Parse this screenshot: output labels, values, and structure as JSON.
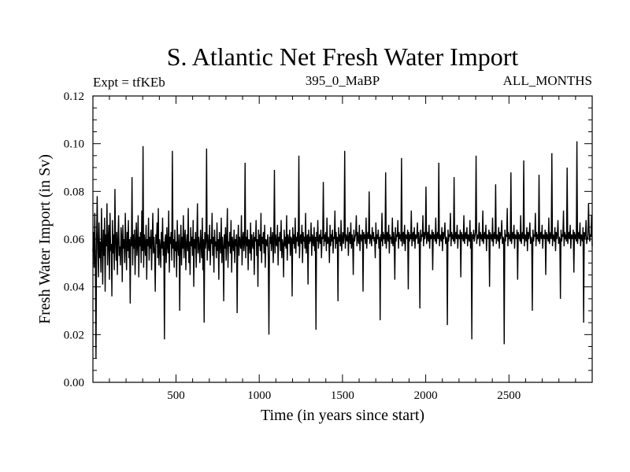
{
  "chart_data": {
    "type": "line",
    "title": "S. Atlantic Net Fresh Water Import",
    "subtitle_left": "Expt = tfKEb",
    "subtitle_center": "395_0_MaBP",
    "subtitle_right": "ALL_MONTHS",
    "xlabel": "Time (in years since start)",
    "ylabel": "Fresh Water Import (in Sv)",
    "xlim": [
      1,
      3000
    ],
    "ylim": [
      0.0,
      0.12
    ],
    "xticks": [
      500,
      1000,
      1500,
      2000,
      2500
    ],
    "xtick_labels": [
      "500",
      "1000",
      "1500",
      "2000",
      "2500"
    ],
    "yticks": [
      0.0,
      0.02,
      0.04,
      0.06,
      0.08,
      0.1,
      0.12
    ],
    "ytick_labels": [
      "0.00",
      "0.02",
      "0.04",
      "0.06",
      "0.08",
      "0.10",
      "0.12"
    ],
    "grid": false,
    "line_color": "#000000",
    "series": [
      {
        "values": [
          0.055,
          0.063,
          0.048,
          0.071,
          0.052,
          0.01,
          0.061,
          0.078,
          0.056,
          0.044,
          0.067,
          0.052,
          0.059,
          0.046,
          0.073,
          0.058,
          0.041,
          0.064,
          0.053,
          0.069,
          0.038,
          0.062,
          0.057,
          0.075,
          0.049,
          0.06,
          0.066,
          0.043,
          0.071,
          0.055,
          0.058,
          0.036,
          0.068,
          0.054,
          0.062,
          0.047,
          0.081,
          0.059,
          0.051,
          0.063,
          0.045,
          0.06,
          0.07,
          0.053,
          0.057,
          0.049,
          0.065,
          0.061,
          0.042,
          0.066,
          0.056,
          0.06,
          0.05,
          0.071,
          0.058,
          0.047,
          0.063,
          0.055,
          0.068,
          0.052,
          0.06,
          0.033,
          0.061,
          0.057,
          0.086,
          0.049,
          0.062,
          0.056,
          0.064,
          0.045,
          0.059,
          0.067,
          0.053,
          0.058,
          0.07,
          0.044,
          0.061,
          0.057,
          0.063,
          0.05,
          0.072,
          0.055,
          0.099,
          0.048,
          0.062,
          0.058,
          0.053,
          0.066,
          0.043,
          0.06,
          0.057,
          0.069,
          0.051,
          0.061,
          0.056,
          0.064,
          0.047,
          0.059,
          0.071,
          0.054,
          0.061,
          0.055,
          0.038,
          0.062,
          0.058,
          0.067,
          0.052,
          0.073,
          0.049,
          0.06,
          0.057,
          0.048,
          0.063,
          0.056,
          0.069,
          0.053,
          0.059,
          0.018,
          0.06,
          0.062,
          0.05,
          0.065,
          0.057,
          0.054,
          0.072,
          0.046,
          0.061,
          0.058,
          0.063,
          0.051,
          0.097,
          0.056,
          0.06,
          0.048,
          0.064,
          0.055,
          0.059,
          0.044,
          0.068,
          0.057,
          0.053,
          0.062,
          0.03,
          0.058,
          0.066,
          0.049,
          0.061,
          0.056,
          0.07,
          0.052,
          0.06,
          0.064,
          0.047,
          0.058,
          0.062,
          0.055,
          0.073,
          0.05,
          0.059,
          0.045,
          0.065,
          0.057,
          0.061,
          0.053,
          0.068,
          0.04,
          0.06,
          0.056,
          0.063,
          0.048,
          0.059,
          0.075,
          0.054,
          0.061,
          0.057,
          0.05,
          0.064,
          0.058,
          0.052,
          0.069,
          0.047,
          0.06,
          0.025,
          0.063,
          0.056,
          0.059,
          0.098,
          0.051,
          0.062,
          0.057,
          0.055,
          0.066,
          0.049,
          0.06,
          0.058,
          0.071,
          0.053,
          0.061,
          0.046,
          0.064,
          0.057,
          0.059,
          0.052,
          0.067,
          0.055,
          0.06,
          0.043,
          0.063,
          0.058,
          0.054,
          0.069,
          0.05,
          0.061,
          0.057,
          0.034,
          0.062,
          0.056,
          0.065,
          0.051,
          0.06,
          0.073,
          0.048,
          0.059,
          0.057,
          0.063,
          0.054,
          0.068,
          0.046,
          0.061,
          0.058,
          0.055,
          0.064,
          0.05,
          0.06,
          0.057,
          0.062,
          0.029,
          0.059,
          0.066,
          0.053,
          0.061,
          0.058,
          0.056,
          0.07,
          0.049,
          0.06,
          0.063,
          0.055,
          0.058,
          0.092,
          0.052,
          0.061,
          0.057,
          0.064,
          0.047,
          0.06,
          0.059,
          0.054,
          0.067,
          0.051,
          0.062,
          0.058,
          0.056,
          0.063,
          0.045,
          0.061,
          0.059,
          0.068,
          0.053,
          0.06,
          0.04,
          0.064,
          0.057,
          0.062,
          0.055,
          0.071,
          0.05,
          0.061,
          0.058,
          0.063,
          0.054,
          0.066,
          0.048,
          0.06,
          0.059,
          0.057,
          0.062,
          0.052,
          0.02,
          0.061,
          0.058,
          0.065,
          0.055,
          0.06,
          0.063,
          0.05,
          0.059,
          0.089,
          0.054,
          0.062,
          0.058,
          0.057,
          0.066,
          0.049,
          0.061,
          0.059,
          0.063,
          0.055,
          0.068,
          0.052,
          0.06,
          0.058,
          0.044,
          0.064,
          0.057,
          0.061,
          0.056,
          0.07,
          0.051,
          0.062,
          0.059,
          0.058,
          0.064,
          0.053,
          0.061,
          0.06,
          0.036,
          0.065,
          0.058,
          0.062,
          0.056,
          0.069,
          0.054,
          0.061,
          0.059,
          0.063,
          0.057,
          0.095,
          0.052,
          0.06,
          0.062,
          0.058,
          0.066,
          0.05,
          0.063,
          0.059,
          0.061,
          0.056,
          0.071,
          0.054,
          0.06,
          0.062,
          0.041,
          0.064,
          0.058,
          0.061,
          0.059,
          0.067,
          0.053,
          0.062,
          0.06,
          0.057,
          0.065,
          0.055,
          0.061,
          0.022,
          0.063,
          0.059,
          0.068,
          0.056,
          0.06,
          0.062,
          0.058,
          0.064,
          0.052,
          0.061,
          0.06,
          0.084,
          0.057,
          0.062,
          0.059,
          0.063,
          0.055,
          0.069,
          0.058,
          0.061,
          0.06,
          0.05,
          0.066,
          0.057,
          0.062,
          0.059,
          0.064,
          0.054,
          0.061,
          0.06,
          0.072,
          0.056,
          0.063,
          0.058,
          0.061,
          0.034,
          0.065,
          0.059,
          0.062,
          0.057,
          0.068,
          0.055,
          0.06,
          0.063,
          0.058,
          0.061,
          0.097,
          0.056,
          0.062,
          0.06,
          0.059,
          0.065,
          0.053,
          0.061,
          0.063,
          0.058,
          0.067,
          0.056,
          0.062,
          0.06,
          0.045,
          0.064,
          0.059,
          0.061,
          0.062,
          0.07,
          0.057,
          0.063,
          0.06,
          0.058,
          0.066,
          0.055,
          0.062,
          0.061,
          0.059,
          0.064,
          0.038,
          0.063,
          0.06,
          0.062,
          0.058,
          0.069,
          0.056,
          0.061,
          0.063,
          0.06,
          0.08,
          0.058,
          0.062,
          0.061,
          0.057,
          0.065,
          0.06,
          0.063,
          0.059,
          0.061,
          0.052,
          0.067,
          0.058,
          0.062,
          0.06,
          0.064,
          0.056,
          0.061,
          0.026,
          0.062,
          0.059,
          0.071,
          0.057,
          0.063,
          0.06,
          0.062,
          0.058,
          0.088,
          0.056,
          0.061,
          0.063,
          0.059,
          0.066,
          0.054,
          0.062,
          0.06,
          0.061,
          0.058,
          0.069,
          0.057,
          0.063,
          0.06,
          0.043,
          0.065,
          0.059,
          0.062,
          0.061,
          0.068,
          0.056,
          0.063,
          0.06,
          0.062,
          0.059,
          0.094,
          0.057,
          0.061,
          0.063,
          0.058,
          0.066,
          0.055,
          0.062,
          0.061,
          0.06,
          0.064,
          0.039,
          0.063,
          0.059,
          0.062,
          0.06,
          0.072,
          0.057,
          0.061,
          0.063,
          0.059,
          0.065,
          0.056,
          0.062,
          0.06,
          0.061,
          0.067,
          0.058,
          0.063,
          0.06,
          0.031,
          0.064,
          0.059,
          0.062,
          0.061,
          0.07,
          0.057,
          0.063,
          0.06,
          0.062,
          0.082,
          0.058,
          0.061,
          0.063,
          0.059,
          0.066,
          0.056,
          0.062,
          0.06,
          0.061,
          0.064,
          0.047,
          0.063,
          0.06,
          0.062,
          0.059,
          0.069,
          0.058,
          0.061,
          0.063,
          0.06,
          0.092,
          0.057,
          0.062,
          0.061,
          0.059,
          0.065,
          0.055,
          0.063,
          0.06,
          0.062,
          0.067,
          0.058,
          0.061,
          0.06,
          0.024,
          0.064,
          0.059,
          0.062,
          0.061,
          0.071,
          0.057,
          0.063,
          0.06,
          0.062,
          0.059,
          0.086,
          0.058,
          0.061,
          0.063,
          0.06,
          0.066,
          0.056,
          0.062,
          0.061,
          0.06,
          0.064,
          0.044,
          0.063,
          0.06,
          0.062,
          0.059,
          0.07,
          0.058,
          0.061,
          0.063,
          0.06,
          0.065,
          0.057,
          0.062,
          0.061,
          0.059,
          0.068,
          0.056,
          0.063,
          0.018,
          0.062,
          0.06,
          0.064,
          0.059,
          0.061,
          0.063,
          0.095,
          0.058,
          0.062,
          0.06,
          0.061,
          0.067,
          0.057,
          0.063,
          0.06,
          0.062,
          0.059,
          0.072,
          0.058,
          0.061,
          0.063,
          0.06,
          0.066,
          0.055,
          0.062,
          0.061,
          0.06,
          0.064,
          0.04,
          0.063,
          0.06,
          0.062,
          0.059,
          0.069,
          0.057,
          0.061,
          0.063,
          0.06,
          0.083,
          0.058,
          0.062,
          0.061,
          0.059,
          0.065,
          0.056,
          0.063,
          0.06,
          0.062,
          0.068,
          0.058,
          0.061,
          0.06,
          0.016,
          0.064,
          0.059,
          0.062,
          0.061,
          0.073,
          0.057,
          0.063,
          0.06,
          0.062,
          0.059,
          0.088,
          0.058,
          0.061,
          0.063,
          0.06,
          0.066,
          0.056,
          0.062,
          0.061,
          0.06,
          0.064,
          0.043,
          0.063,
          0.06,
          0.062,
          0.059,
          0.07,
          0.058,
          0.061,
          0.063,
          0.06,
          0.093,
          0.057,
          0.062,
          0.061,
          0.059,
          0.065,
          0.055,
          0.063,
          0.06,
          0.062,
          0.067,
          0.058,
          0.061,
          0.06,
          0.03,
          0.064,
          0.059,
          0.062,
          0.061,
          0.071,
          0.057,
          0.063,
          0.06,
          0.062,
          0.059,
          0.087,
          0.058,
          0.061,
          0.063,
          0.06,
          0.066,
          0.056,
          0.062,
          0.061,
          0.06,
          0.064,
          0.045,
          0.063,
          0.06,
          0.062,
          0.059,
          0.069,
          0.058,
          0.061,
          0.063,
          0.06,
          0.096,
          0.057,
          0.062,
          0.061,
          0.059,
          0.065,
          0.055,
          0.063,
          0.06,
          0.062,
          0.068,
          0.058,
          0.061,
          0.06,
          0.035,
          0.064,
          0.059,
          0.062,
          0.061,
          0.072,
          0.057,
          0.063,
          0.06,
          0.062,
          0.059,
          0.09,
          0.058,
          0.061,
          0.063,
          0.06,
          0.066,
          0.056,
          0.062,
          0.061,
          0.06,
          0.064,
          0.046,
          0.063,
          0.06,
          0.062,
          0.059,
          0.101,
          0.058,
          0.061,
          0.063,
          0.06,
          0.067,
          0.057,
          0.062,
          0.061,
          0.059,
          0.065,
          0.025,
          0.063,
          0.06,
          0.062,
          0.068,
          0.058,
          0.061,
          0.06,
          0.075,
          0.064,
          0.059,
          0.062,
          0.061,
          0.07,
          0.057
        ]
      }
    ]
  }
}
